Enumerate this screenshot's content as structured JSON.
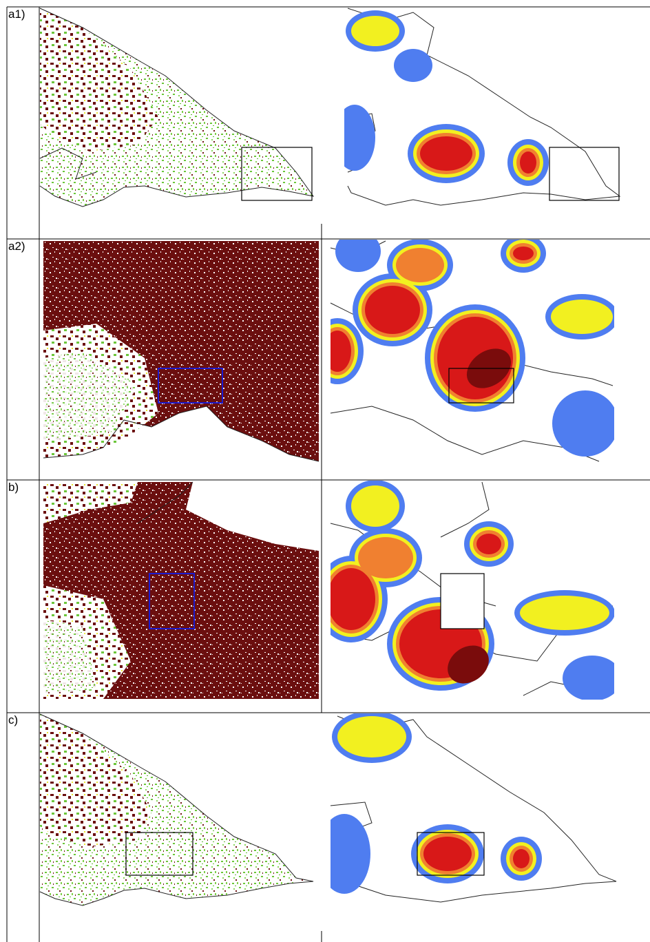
{
  "panels": [
    {
      "label": "a1)"
    },
    {
      "label": "a2)"
    },
    {
      "label": "b)"
    },
    {
      "label": "c)"
    }
  ]
}
